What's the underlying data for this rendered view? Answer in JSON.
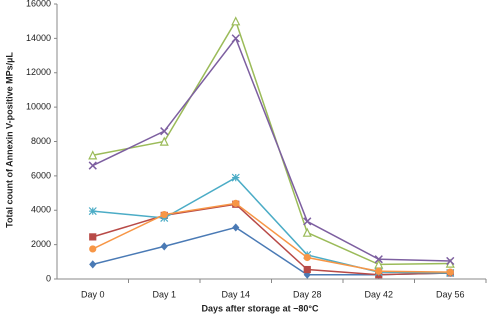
{
  "chart_data": {
    "type": "line",
    "x_label": "Days after storage at −80°C",
    "y_label": "Total count of Annexin V-positive MPs/µL",
    "categories": [
      "Day 0",
      "Day 1",
      "Day 14",
      "Day 28",
      "Day 42",
      "Day 56"
    ],
    "series": [
      {
        "color": "#4a7ab5",
        "marker": "diamond",
        "values": [
          850,
          1900,
          3000,
          250,
          250,
          350
        ]
      },
      {
        "color": "#b84a47",
        "marker": "square",
        "values": [
          2450,
          3700,
          4350,
          550,
          250,
          350
        ]
      },
      {
        "color": "#9bbb59",
        "marker": "triangle",
        "values": [
          7200,
          8000,
          15000,
          2700,
          850,
          900
        ]
      },
      {
        "color": "#7d5fa0",
        "marker": "x",
        "values": [
          6600,
          8600,
          14000,
          3350,
          1150,
          1050
        ]
      },
      {
        "color": "#4bacc6",
        "marker": "star",
        "values": [
          3950,
          3550,
          5900,
          1400,
          400,
          350
        ]
      },
      {
        "color": "#f79646",
        "marker": "circle",
        "values": [
          1750,
          3750,
          4400,
          1250,
          450,
          400
        ]
      }
    ],
    "ylim": [
      0,
      16000
    ],
    "yticks": [
      0,
      2000,
      4000,
      6000,
      8000,
      10000,
      12000,
      14000,
      16000
    ],
    "grid": false
  }
}
